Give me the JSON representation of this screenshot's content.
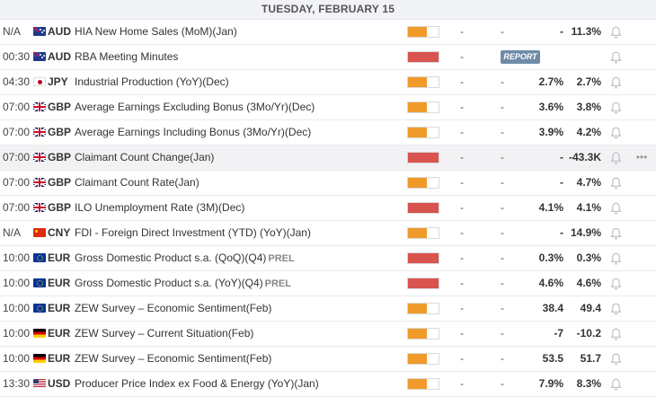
{
  "header": {
    "date": "TUESDAY, FEBRUARY 15"
  },
  "more_label": "•••",
  "rows": [
    {
      "time": "N/A",
      "flag": "au",
      "currency": "AUD",
      "event": "HIA New Home Sales (MoM)(Jan)",
      "tag": "",
      "impact": "medium",
      "actual": "-",
      "forecast": "-",
      "previous": "-",
      "consensus": "11.3%",
      "report": ""
    },
    {
      "time": "00:30",
      "flag": "au",
      "currency": "AUD",
      "event": "RBA Meeting Minutes",
      "tag": "",
      "impact": "high",
      "actual": "-",
      "forecast": "",
      "previous": "",
      "consensus": "",
      "report": "REPORT"
    },
    {
      "time": "04:30",
      "flag": "jp",
      "currency": "JPY",
      "event": "Industrial Production (YoY)(Dec)",
      "tag": "",
      "impact": "medium",
      "actual": "-",
      "forecast": "-",
      "previous": "2.7%",
      "consensus": "2.7%",
      "report": ""
    },
    {
      "time": "07:00",
      "flag": "gb",
      "currency": "GBP",
      "event": "Average Earnings Excluding Bonus (3Mo/Yr)(Dec)",
      "tag": "",
      "impact": "medium",
      "actual": "-",
      "forecast": "-",
      "previous": "3.6%",
      "consensus": "3.8%",
      "report": ""
    },
    {
      "time": "07:00",
      "flag": "gb",
      "currency": "GBP",
      "event": "Average Earnings Including Bonus (3Mo/Yr)(Dec)",
      "tag": "",
      "impact": "medium",
      "actual": "-",
      "forecast": "-",
      "previous": "3.9%",
      "consensus": "4.2%",
      "report": ""
    },
    {
      "time": "07:00",
      "flag": "gb",
      "currency": "GBP",
      "event": "Claimant Count Change(Jan)",
      "tag": "",
      "impact": "high",
      "actual": "-",
      "forecast": "-",
      "previous": "-",
      "consensus": "-43.3K",
      "report": "",
      "highlight": true
    },
    {
      "time": "07:00",
      "flag": "gb",
      "currency": "GBP",
      "event": "Claimant Count Rate(Jan)",
      "tag": "",
      "impact": "medium",
      "actual": "-",
      "forecast": "-",
      "previous": "-",
      "consensus": "4.7%",
      "report": ""
    },
    {
      "time": "07:00",
      "flag": "gb",
      "currency": "GBP",
      "event": "ILO Unemployment Rate (3M)(Dec)",
      "tag": "",
      "impact": "high",
      "actual": "-",
      "forecast": "-",
      "previous": "4.1%",
      "consensus": "4.1%",
      "report": ""
    },
    {
      "time": "N/A",
      "flag": "cn",
      "currency": "CNY",
      "event": "FDI - Foreign Direct Investment (YTD) (YoY)(Jan)",
      "tag": "",
      "impact": "medium",
      "actual": "-",
      "forecast": "-",
      "previous": "-",
      "consensus": "14.9%",
      "report": ""
    },
    {
      "time": "10:00",
      "flag": "eu",
      "currency": "EUR",
      "event": "Gross Domestic Product s.a. (QoQ)(Q4)",
      "tag": "PREL",
      "impact": "high",
      "actual": "-",
      "forecast": "-",
      "previous": "0.3%",
      "consensus": "0.3%",
      "report": ""
    },
    {
      "time": "10:00",
      "flag": "eu",
      "currency": "EUR",
      "event": "Gross Domestic Product s.a. (YoY)(Q4)",
      "tag": "PREL",
      "impact": "high",
      "actual": "-",
      "forecast": "-",
      "previous": "4.6%",
      "consensus": "4.6%",
      "report": ""
    },
    {
      "time": "10:00",
      "flag": "eu",
      "currency": "EUR",
      "event": "ZEW Survey – Economic Sentiment(Feb)",
      "tag": "",
      "impact": "medium",
      "actual": "-",
      "forecast": "-",
      "previous": "38.4",
      "consensus": "49.4",
      "report": ""
    },
    {
      "time": "10:00",
      "flag": "de",
      "currency": "EUR",
      "event": "ZEW Survey – Current Situation(Feb)",
      "tag": "",
      "impact": "medium",
      "actual": "-",
      "forecast": "-",
      "previous": "-7",
      "consensus": "-10.2",
      "report": ""
    },
    {
      "time": "10:00",
      "flag": "de",
      "currency": "EUR",
      "event": "ZEW Survey – Economic Sentiment(Feb)",
      "tag": "",
      "impact": "medium",
      "actual": "-",
      "forecast": "-",
      "previous": "53.5",
      "consensus": "51.7",
      "report": ""
    },
    {
      "time": "13:30",
      "flag": "us",
      "currency": "USD",
      "event": "Producer Price Index ex Food & Energy (YoY)(Jan)",
      "tag": "",
      "impact": "medium",
      "actual": "-",
      "forecast": "-",
      "previous": "7.9%",
      "consensus": "8.3%",
      "report": ""
    }
  ],
  "colors": {
    "impact_medium": "#f09a2a",
    "impact_high": "#d9534f",
    "report_badge": "#6f8ba8",
    "header_bg": "#f1f3f6"
  },
  "icons": {
    "bell": "bell-icon",
    "more": "more-dots-icon"
  }
}
